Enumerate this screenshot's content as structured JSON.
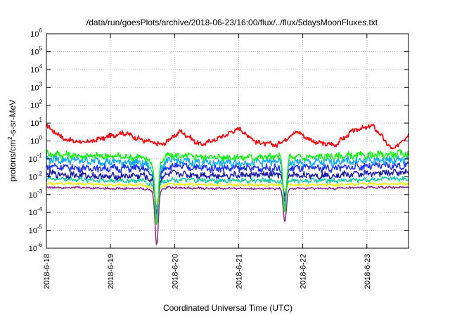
{
  "chart_data": {
    "type": "line",
    "title": "/data/run/goesPlots/archive/2018-06-23/16:00/flux/../flux/5daysMoonFluxes.txt",
    "xlabel": "Coordinated Universal Time (UTC)",
    "ylabel": "protons/cm²-s-sr-MeV",
    "ylabel_parts": {
      "pre": "protons/cm",
      "sup": "2",
      "post": "-s-sr-MeV"
    },
    "x_tick_labels": [
      "2018-6-18",
      "2018-6-19",
      "2018-6-20",
      "2018-6-21",
      "2018-6-22",
      "2018-6-23"
    ],
    "xlim_days": [
      0,
      5.65
    ],
    "y_scale": "log",
    "ylim": [
      1e-06,
      1000000.0
    ],
    "y_tick_exponents": [
      -6,
      -5,
      -4,
      -3,
      -2,
      -1,
      0,
      1,
      2,
      3,
      4,
      5,
      6
    ],
    "grid": true,
    "legend": "none",
    "colors": {
      "red": "#e8141a",
      "green": "#18ee18",
      "cyan": "#14a8ee",
      "blue": "#1e32e6",
      "darkblue": "#1b1ba4",
      "teal": "#1bc8a8",
      "yellow": "#f2f20e",
      "purple": "#8a2a8a"
    },
    "series": [
      {
        "color_key": "red",
        "x": [
          0,
          0.3,
          0.6,
          0.9,
          1.2,
          1.5,
          1.8,
          2.1,
          2.4,
          2.7,
          3.0,
          3.3,
          3.6,
          3.9,
          4.2,
          4.5,
          4.8,
          5.1,
          5.4,
          5.65
        ],
        "y": [
          7,
          1.2,
          0.8,
          1.5,
          3,
          1.1,
          0.6,
          3.5,
          0.6,
          1.5,
          5,
          0.8,
          0.6,
          3.5,
          0.8,
          0.6,
          4,
          7,
          0.3,
          2.5
        ]
      },
      {
        "color_key": "green",
        "x": [
          0,
          0.5,
          1.0,
          1.5,
          1.7,
          1.9,
          2.5,
          3.0,
          3.5,
          4.0,
          4.5,
          5.0,
          5.65
        ],
        "y": [
          0.2,
          0.15,
          0.14,
          0.12,
          0.05,
          0.15,
          0.13,
          0.12,
          0.13,
          0.12,
          0.14,
          0.15,
          0.2
        ]
      },
      {
        "color_key": "cyan",
        "x": [
          0,
          0.5,
          1.0,
          1.5,
          1.7,
          1.9,
          2.5,
          3.0,
          3.5,
          4.0,
          4.5,
          5.0,
          5.65
        ],
        "y": [
          0.1,
          0.08,
          0.07,
          0.06,
          0.02,
          0.08,
          0.06,
          0.06,
          0.07,
          0.06,
          0.07,
          0.08,
          0.09
        ]
      },
      {
        "color_key": "blue",
        "x": [
          0,
          0.5,
          1.0,
          1.5,
          1.7,
          1.9,
          2.5,
          3.0,
          3.5,
          4.0,
          4.5,
          5.0,
          5.65
        ],
        "y": [
          0.04,
          0.03,
          0.03,
          0.03,
          0.01,
          0.04,
          0.03,
          0.03,
          0.03,
          0.03,
          0.03,
          0.04,
          0.04
        ]
      },
      {
        "color_key": "darkblue",
        "x": [
          0,
          0.5,
          1.0,
          1.5,
          1.7,
          1.9,
          2.5,
          3.0,
          3.5,
          4.0,
          4.5,
          5.0,
          5.65
        ],
        "y": [
          0.015,
          0.012,
          0.01,
          0.012,
          0.005,
          0.015,
          0.012,
          0.012,
          0.013,
          0.012,
          0.012,
          0.015,
          0.018
        ]
      },
      {
        "color_key": "teal",
        "x": [
          0,
          0.5,
          1.0,
          1.5,
          1.7,
          1.9,
          2.5,
          3.0,
          3.5,
          4.0,
          4.5,
          5.0,
          5.65
        ],
        "y": [
          0.008,
          0.007,
          0.006,
          0.006,
          0.003,
          0.007,
          0.006,
          0.006,
          0.006,
          0.006,
          0.006,
          0.007,
          0.008
        ]
      },
      {
        "color_key": "yellow",
        "x": [
          0,
          0.5,
          1.0,
          1.5,
          1.7,
          1.9,
          2.5,
          3.0,
          3.5,
          4.0,
          4.5,
          5.0,
          5.65
        ],
        "y": [
          0.004,
          0.004,
          0.0035,
          0.0035,
          0.002,
          0.004,
          0.0035,
          0.0035,
          0.0035,
          0.0035,
          0.0035,
          0.004,
          0.004
        ]
      },
      {
        "color_key": "purple",
        "x": [
          0,
          0.5,
          1.0,
          1.5,
          1.7,
          1.9,
          2.5,
          3.0,
          3.5,
          4.0,
          4.5,
          5.0,
          5.65
        ],
        "y": [
          0.0025,
          0.0025,
          0.0022,
          0.0022,
          0.0015,
          0.0025,
          0.0022,
          0.0022,
          0.0022,
          0.0022,
          0.0022,
          0.0025,
          0.0025
        ]
      }
    ],
    "dips": [
      {
        "x": 1.72,
        "min_purple": 1.5e-06,
        "min_others": [
          2e-05,
          4e-05,
          8e-05,
          0.0001,
          0.0002,
          0.0004
        ]
      },
      {
        "x": 3.72,
        "min_purple": 3e-05,
        "min_others": [
          0.0001,
          0.0002,
          0.0004,
          0.0008,
          0.001,
          0.002
        ]
      }
    ]
  }
}
